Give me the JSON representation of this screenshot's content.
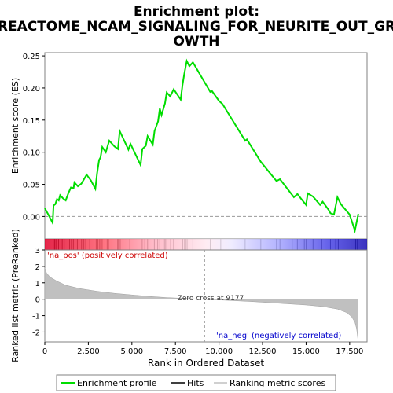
{
  "chart_data": {
    "type": "line",
    "title": "Enrichment plot: REACTOME_NCAM_SIGNALING_FOR_NEURITE_OUT_GROWTH",
    "title_lines": [
      "Enrichment plot:",
      "REACTOME_NCAM_SIGNALING_FOR_NEURITE_OUT_GR",
      "OWTH"
    ],
    "xlabel": "Rank in Ordered Dataset",
    "top_panel": {
      "ylabel": "Enrichment score (ES)",
      "ylim": [
        -0.035,
        0.255
      ],
      "yticks": [
        0.0,
        0.05,
        0.1,
        0.15,
        0.2,
        0.25
      ],
      "ytick_labels": [
        "0.00",
        "0.05",
        "0.10",
        "0.15",
        "0.20",
        "0.25"
      ],
      "color": "#00dd00",
      "series_points": [
        [
          0,
          0.013
        ],
        [
          200,
          0.003
        ],
        [
          450,
          -0.01
        ],
        [
          500,
          0.017
        ],
        [
          600,
          0.019
        ],
        [
          700,
          0.027
        ],
        [
          800,
          0.025
        ],
        [
          880,
          0.033
        ],
        [
          1050,
          0.028
        ],
        [
          1200,
          0.025
        ],
        [
          1350,
          0.036
        ],
        [
          1500,
          0.045
        ],
        [
          1650,
          0.044
        ],
        [
          1700,
          0.053
        ],
        [
          1900,
          0.047
        ],
        [
          2100,
          0.051
        ],
        [
          2250,
          0.058
        ],
        [
          2400,
          0.065
        ],
        [
          2650,
          0.056
        ],
        [
          2900,
          0.043
        ],
        [
          3000,
          0.067
        ],
        [
          3120,
          0.088
        ],
        [
          3200,
          0.092
        ],
        [
          3300,
          0.108
        ],
        [
          3500,
          0.1
        ],
        [
          3700,
          0.118
        ],
        [
          4000,
          0.109
        ],
        [
          4200,
          0.105
        ],
        [
          4300,
          0.133
        ],
        [
          4800,
          0.104
        ],
        [
          4920,
          0.113
        ],
        [
          5500,
          0.08
        ],
        [
          5600,
          0.105
        ],
        [
          5800,
          0.11
        ],
        [
          5900,
          0.125
        ],
        [
          6200,
          0.112
        ],
        [
          6300,
          0.133
        ],
        [
          6500,
          0.148
        ],
        [
          6600,
          0.168
        ],
        [
          6700,
          0.158
        ],
        [
          6900,
          0.176
        ],
        [
          7000,
          0.193
        ],
        [
          7200,
          0.187
        ],
        [
          7400,
          0.198
        ],
        [
          7800,
          0.182
        ],
        [
          7900,
          0.204
        ],
        [
          8000,
          0.221
        ],
        [
          8150,
          0.242
        ],
        [
          8300,
          0.234
        ],
        [
          8500,
          0.24
        ],
        [
          9500,
          0.194
        ],
        [
          9600,
          0.195
        ],
        [
          10000,
          0.18
        ],
        [
          10200,
          0.175
        ],
        [
          11500,
          0.118
        ],
        [
          11600,
          0.12
        ],
        [
          12400,
          0.085
        ],
        [
          13300,
          0.055
        ],
        [
          13500,
          0.058
        ],
        [
          14300,
          0.03
        ],
        [
          14500,
          0.035
        ],
        [
          14700,
          0.028
        ],
        [
          15000,
          0.018
        ],
        [
          15100,
          0.036
        ],
        [
          15400,
          0.031
        ],
        [
          15800,
          0.018
        ],
        [
          15950,
          0.023
        ],
        [
          16300,
          0.01
        ],
        [
          16400,
          0.005
        ],
        [
          16600,
          0.003
        ],
        [
          16800,
          0.03
        ],
        [
          17000,
          0.019
        ],
        [
          17500,
          0.003
        ],
        [
          17800,
          -0.022
        ],
        [
          17900,
          -0.009
        ],
        [
          18000,
          0.004
        ]
      ]
    },
    "hits_panel": {
      "hit_ranks": [
        480,
        560,
        640,
        790,
        1000,
        1110,
        1420,
        1530,
        1640,
        1870,
        2110,
        2240,
        2350,
        2580,
        2950,
        3050,
        3150,
        3220,
        3290,
        3580,
        3660,
        4180,
        4230,
        4330,
        4880,
        5590,
        5740,
        5900,
        6290,
        6480,
        6600,
        6870,
        6940,
        7220,
        7390,
        7920,
        8020,
        8090,
        8170,
        8500,
        9500,
        10100,
        11500,
        12400,
        13300,
        13500,
        14200,
        14500,
        14900,
        15000,
        15400,
        15900,
        16400,
        16700,
        16850,
        17850,
        17950
      ]
    },
    "bottom_panel": {
      "ylabel": "Ranked list metric (PreRanked)",
      "ylim": [
        -2.6,
        3.0
      ],
      "yticks": [
        -2,
        -1,
        0,
        1,
        2,
        3
      ],
      "ytick_labels": [
        "-2",
        "-1",
        "0",
        "1",
        "2",
        "3"
      ],
      "fill_color": "#c0c0c0",
      "metric_points": [
        [
          0,
          1.9
        ],
        [
          100,
          1.6
        ],
        [
          300,
          1.35
        ],
        [
          700,
          1.1
        ],
        [
          1200,
          0.85
        ],
        [
          2000,
          0.65
        ],
        [
          3000,
          0.48
        ],
        [
          4000,
          0.36
        ],
        [
          5000,
          0.26
        ],
        [
          6000,
          0.17
        ],
        [
          7000,
          0.1
        ],
        [
          8000,
          0.05
        ],
        [
          9177,
          0.0
        ],
        [
          10500,
          -0.07
        ],
        [
          12000,
          -0.15
        ],
        [
          13500,
          -0.25
        ],
        [
          15000,
          -0.35
        ],
        [
          16000,
          -0.45
        ],
        [
          16800,
          -0.6
        ],
        [
          17300,
          -0.8
        ],
        [
          17600,
          -1.05
        ],
        [
          17800,
          -1.4
        ],
        [
          17900,
          -1.8
        ],
        [
          17980,
          -2.5
        ]
      ],
      "zero_cross_label": "Zero cross at 9177",
      "zero_cross": 9177,
      "pos_label": "'na_pos' (positively correlated)",
      "neg_label": "'na_neg' (negatively correlated)"
    },
    "x_range": [
      0,
      18500
    ],
    "xticks": [
      0,
      2500,
      5000,
      7500,
      10000,
      12500,
      15000,
      17500
    ],
    "xtick_labels": [
      "0",
      "2,500",
      "5,000",
      "7,500",
      "10,000",
      "12,500",
      "15,000",
      "17,500"
    ],
    "legend": {
      "placement": "bottom",
      "entries": [
        {
          "label": "Enrichment profile",
          "color": "#00dd00"
        },
        {
          "label": "Hits",
          "color": "#000000"
        },
        {
          "label": "Ranking metric scores",
          "color": "#c0c0c0"
        }
      ]
    }
  }
}
